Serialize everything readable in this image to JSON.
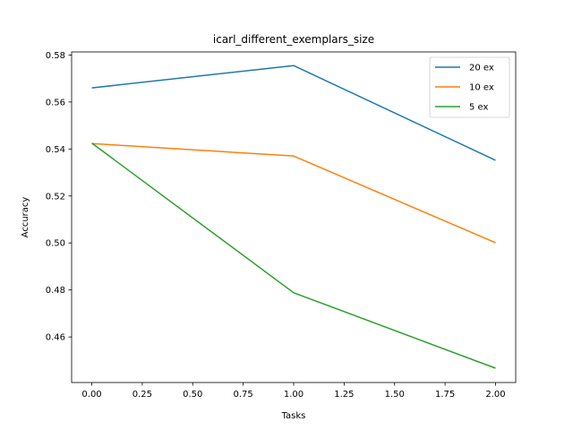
{
  "chart_data": {
    "type": "line",
    "title": "icarl_different_exemplars_size",
    "xlabel": "Tasks",
    "ylabel": "Accuracy",
    "x": [
      0,
      1,
      2
    ],
    "xlim": [
      -0.1,
      2.1
    ],
    "ylim": [
      0.4406,
      0.5813
    ],
    "xticks": [
      0.0,
      0.25,
      0.5,
      0.75,
      1.0,
      1.25,
      1.5,
      1.75,
      2.0
    ],
    "xtick_labels": [
      "0.00",
      "0.25",
      "0.50",
      "0.75",
      "1.00",
      "1.25",
      "1.50",
      "1.75",
      "2.00"
    ],
    "yticks": [
      0.46,
      0.48,
      0.5,
      0.52,
      0.54,
      0.56,
      0.58
    ],
    "ytick_labels": [
      "0.46",
      "0.48",
      "0.50",
      "0.52",
      "0.54",
      "0.56",
      "0.58"
    ],
    "grid": false,
    "legend_position": "top-right",
    "series": [
      {
        "name": "20 ex",
        "color": "#1f77b4",
        "values": [
          0.566,
          0.5755,
          0.5352
        ]
      },
      {
        "name": "10 ex",
        "color": "#ff7f0e",
        "values": [
          0.5423,
          0.537,
          0.5001
        ]
      },
      {
        "name": "5 ex",
        "color": "#2ca02c",
        "values": [
          0.5425,
          0.4788,
          0.4467
        ]
      }
    ]
  }
}
